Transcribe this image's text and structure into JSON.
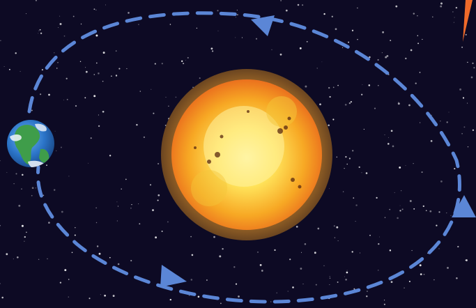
{
  "scene": {
    "background_color": "#0d0a24",
    "objects": [
      {
        "name": "sun",
        "icon": "sun-icon",
        "colors": {
          "core": "#ffe35a",
          "mid": "#f7a824",
          "rim": "#e8641c",
          "halo": "#8a5a22"
        }
      },
      {
        "name": "earth",
        "icon": "earth-icon",
        "colors": {
          "ocean": "#2b74c8",
          "land": "#3f9d4a",
          "cloud": "#f3f6fb"
        }
      }
    ],
    "orbit": {
      "style": "dashed",
      "color": "#5b86d6",
      "direction": "counter-clockwise",
      "arrow_count": 3
    },
    "extra_marks": [
      {
        "name": "orange-marker",
        "color": "#ef6a2a"
      }
    ]
  }
}
